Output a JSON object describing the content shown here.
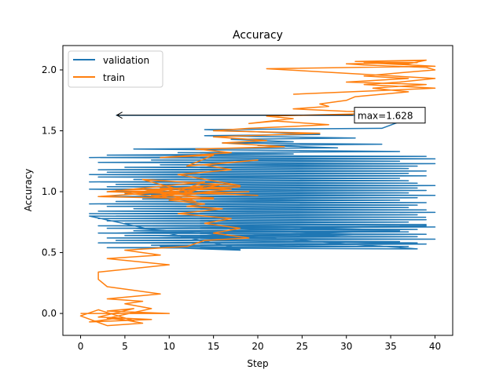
{
  "chart_data": {
    "type": "line",
    "title": "Accuracy",
    "xlabel": "Step",
    "ylabel": "Accuracy",
    "xlim": [
      -2,
      42
    ],
    "ylim": [
      -0.18,
      2.2
    ],
    "xticks": [
      0,
      5,
      10,
      15,
      20,
      25,
      30,
      35,
      40
    ],
    "yticks": [
      0.0,
      0.5,
      1.0,
      1.5,
      2.0
    ],
    "grid": false,
    "legend_position": "top-left",
    "annotation": {
      "text": "max=1.628",
      "point": [
        4,
        1.628
      ],
      "text_anchor": [
        31,
        1.628
      ]
    },
    "series": [
      {
        "name": "validation",
        "color": "#1f77b4",
        "x": [
          4,
          38,
          34,
          14,
          27,
          14,
          31,
          17,
          24,
          16,
          34,
          20,
          29,
          6,
          36,
          11,
          24,
          3,
          39,
          1,
          40,
          8,
          36,
          2,
          40,
          9,
          38,
          5,
          37,
          2,
          39,
          3,
          37,
          1,
          39,
          2,
          36,
          6,
          37,
          1,
          38,
          4,
          40,
          3,
          38,
          1,
          39,
          3,
          37,
          5,
          40,
          2,
          38,
          7,
          36,
          4,
          39,
          1,
          38,
          3,
          37,
          6,
          39,
          2,
          40,
          1,
          38,
          4,
          36,
          2,
          39,
          3,
          37,
          5,
          39,
          2,
          40,
          3,
          38,
          6,
          37,
          2,
          39,
          5,
          38,
          3,
          40,
          4,
          36,
          2,
          39,
          8,
          37,
          3,
          38,
          6,
          39,
          4,
          36,
          8,
          32,
          12,
          38,
          9,
          18,
          10,
          18,
          1,
          39
        ],
        "y": [
          1.628,
          1.628,
          1.52,
          1.51,
          1.47,
          1.46,
          1.44,
          1.43,
          1.41,
          1.4,
          1.39,
          1.38,
          1.36,
          1.35,
          1.33,
          1.32,
          1.31,
          1.3,
          1.29,
          1.28,
          1.27,
          1.26,
          1.25,
          1.24,
          1.23,
          1.22,
          1.21,
          1.2,
          1.19,
          1.18,
          1.17,
          1.16,
          1.15,
          1.14,
          1.13,
          1.12,
          1.11,
          1.1,
          1.09,
          1.08,
          1.07,
          1.06,
          1.05,
          1.04,
          1.03,
          1.02,
          1.01,
          1.0,
          0.99,
          0.98,
          0.97,
          0.96,
          0.95,
          0.94,
          0.93,
          0.92,
          0.91,
          0.9,
          0.89,
          0.88,
          0.87,
          0.86,
          0.85,
          0.84,
          0.83,
          0.82,
          0.81,
          0.8,
          0.79,
          0.78,
          0.77,
          0.76,
          0.75,
          0.74,
          0.73,
          0.72,
          0.71,
          0.7,
          0.69,
          0.68,
          0.67,
          0.66,
          0.65,
          0.64,
          0.63,
          0.62,
          0.61,
          0.6,
          0.59,
          0.58,
          0.57,
          0.56,
          0.55,
          0.54,
          0.53,
          0.7,
          0.72,
          0.66,
          0.68,
          0.62,
          0.65,
          0.6,
          0.58,
          0.55,
          0.52,
          0.54,
          0.53,
          0.8,
          0.79
        ]
      },
      {
        "name": "train",
        "color": "#ff7f0e",
        "x": [
          0,
          10,
          3,
          6,
          2,
          8,
          1,
          4,
          7,
          3,
          0,
          2,
          6,
          3,
          8,
          5,
          7,
          3,
          9,
          3,
          2,
          2,
          10,
          3,
          9,
          5,
          12,
          14,
          19,
          15,
          18,
          14,
          17,
          11,
          16,
          12,
          14,
          10,
          15,
          8,
          19,
          13,
          17,
          9,
          12,
          14,
          8,
          20,
          4,
          18,
          2,
          15,
          7,
          13,
          5,
          16,
          9,
          14,
          3,
          13,
          7,
          18,
          11,
          17,
          14,
          20,
          12,
          15,
          9,
          17,
          13,
          23,
          16,
          21,
          15,
          27,
          15,
          19,
          28,
          22,
          19,
          24,
          21,
          37,
          30,
          24,
          28,
          27,
          30,
          31,
          37,
          33,
          39,
          30,
          37,
          32,
          35,
          40,
          39,
          32,
          30,
          38,
          31,
          39,
          37,
          32,
          40,
          21,
          33,
          40,
          36,
          32,
          40,
          24
        ],
        "y": [
          0.0,
          0.0,
          0.02,
          0.04,
          -0.03,
          -0.05,
          -0.07,
          -0.04,
          -0.08,
          -0.1,
          -0.02,
          0.03,
          -0.06,
          -0.04,
          0.04,
          0.08,
          0.1,
          0.12,
          0.16,
          0.22,
          0.28,
          0.34,
          0.4,
          0.45,
          0.48,
          0.52,
          0.55,
          0.6,
          0.62,
          0.66,
          0.7,
          0.74,
          0.78,
          0.82,
          0.86,
          0.88,
          0.9,
          0.93,
          0.95,
          0.97,
          1.0,
          0.99,
          1.02,
          1.03,
          0.98,
          1.05,
          1.0,
          0.97,
          1.01,
          1.04,
          0.96,
          0.94,
          1.02,
          0.92,
          0.99,
          1.06,
          0.95,
          1.08,
          1.0,
          0.98,
          1.1,
          1.05,
          1.14,
          1.18,
          1.22,
          1.26,
          1.21,
          1.3,
          1.28,
          1.32,
          1.35,
          1.37,
          1.4,
          1.42,
          1.45,
          1.48,
          1.5,
          1.52,
          1.55,
          1.58,
          1.56,
          1.6,
          1.62,
          1.65,
          1.66,
          1.68,
          1.7,
          1.72,
          1.75,
          1.78,
          1.82,
          1.85,
          1.88,
          1.9,
          1.93,
          1.95,
          1.97,
          2.0,
          2.02,
          2.04,
          2.05,
          2.06,
          2.07,
          2.08,
          2.05,
          2.06,
          2.03,
          2.01,
          1.96,
          1.93,
          1.9,
          1.88,
          1.85,
          1.8
        ]
      }
    ]
  }
}
